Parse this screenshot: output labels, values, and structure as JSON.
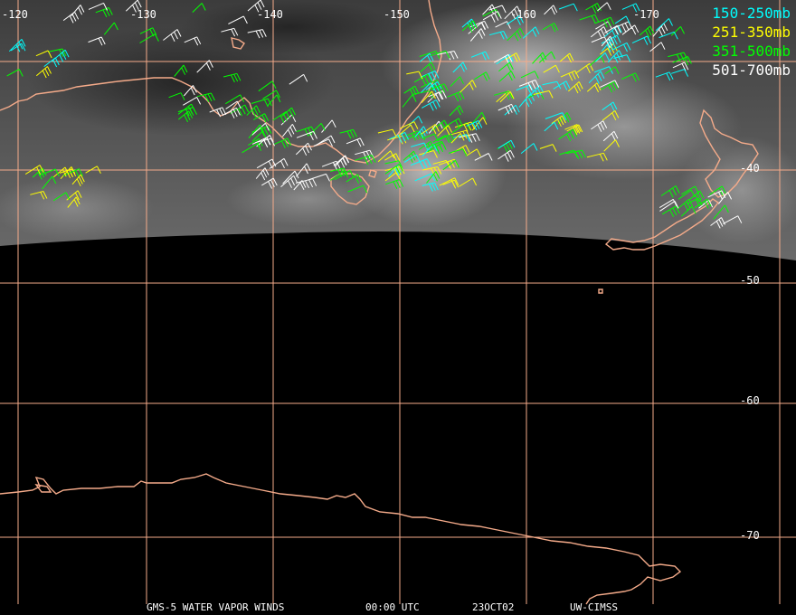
{
  "map": {
    "longitude_labels": [
      "-120",
      "-130",
      "-140",
      "-150",
      "-160",
      "-170"
    ],
    "latitude_labels": [
      "-40",
      "-50",
      "-60",
      "-70"
    ],
    "colors": {
      "graticule": "#f5ab8a",
      "coastline": "#f5ab8a",
      "labels": "#ffffff",
      "background": "#000000"
    }
  },
  "legend": [
    {
      "label": "150-250mb",
      "color": "#00ffff"
    },
    {
      "label": "251-350mb",
      "color": "#ffff00"
    },
    {
      "label": "351-500mb",
      "color": "#00ff00"
    },
    {
      "label": "501-700mb",
      "color": "#ffffff"
    }
  ],
  "footer": {
    "product": "GMS-5 WATER VAPOR WINDS",
    "time": "00:00 UTC",
    "date": "23OCT02",
    "source": "UW-CIMSS"
  }
}
